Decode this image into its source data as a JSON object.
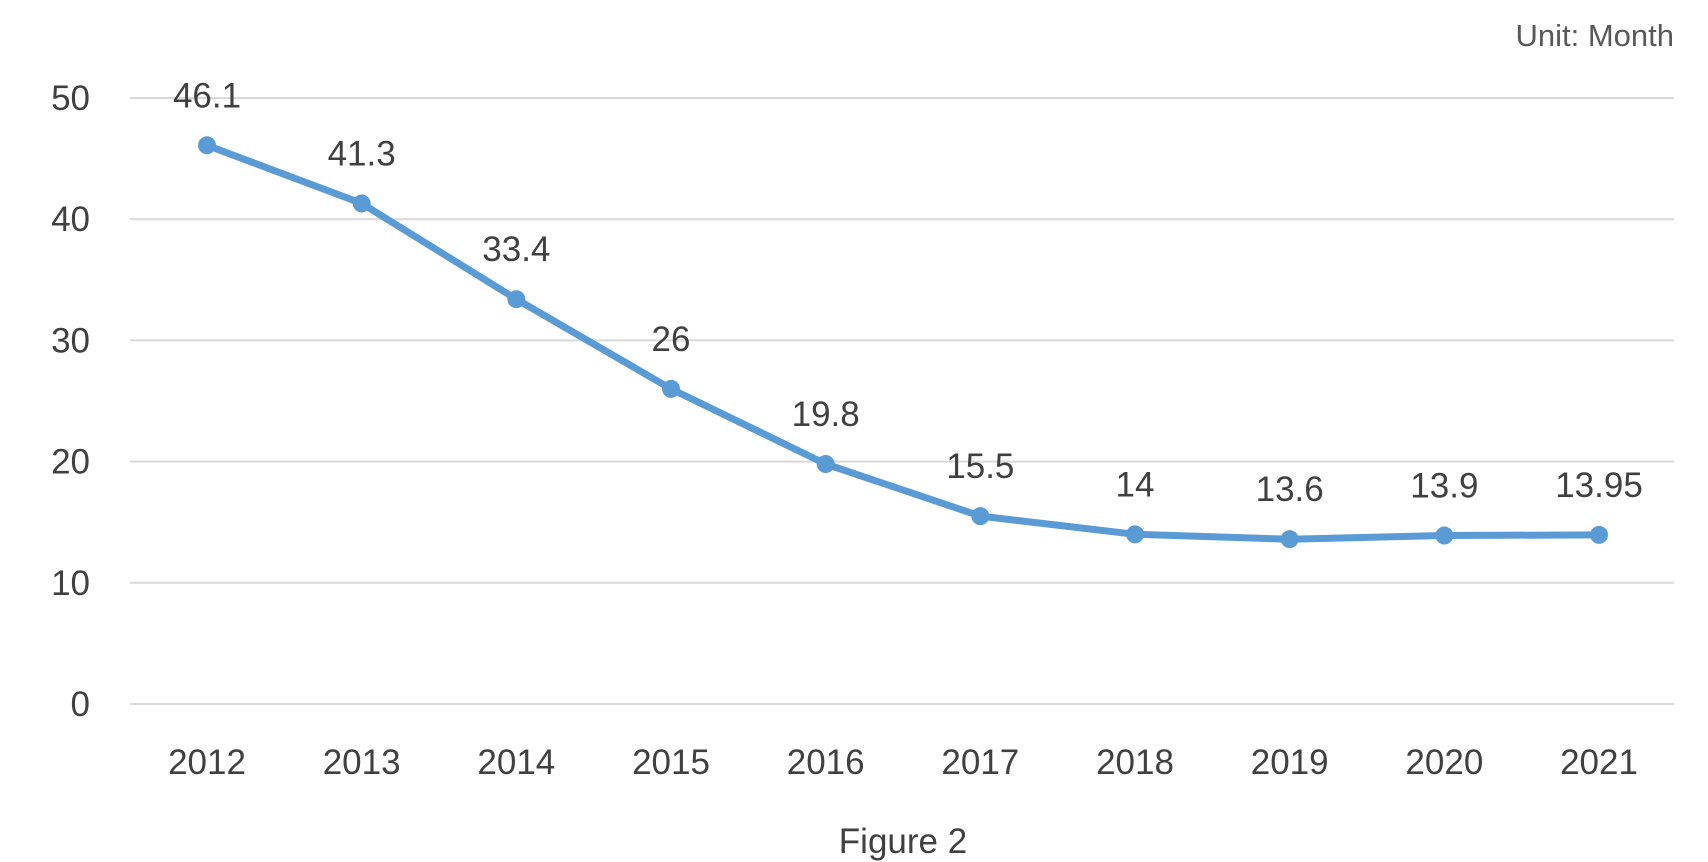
{
  "chart_data": {
    "type": "line",
    "unit_label": "Unit: Month",
    "caption": "Figure 2",
    "categories": [
      "2012",
      "2013",
      "2014",
      "2015",
      "2016",
      "2017",
      "2018",
      "2019",
      "2020",
      "2021"
    ],
    "series": [
      {
        "values": [
          46.1,
          41.3,
          33.4,
          26,
          19.8,
          15.5,
          14,
          13.6,
          13.9,
          13.95
        ],
        "data_labels": [
          "46.1",
          "41.3",
          "33.4",
          "26",
          "19.8",
          "15.5",
          "14",
          "13.6",
          "13.9",
          "13.95"
        ],
        "color": "#5b9bd5"
      }
    ],
    "ylim": [
      0,
      50
    ],
    "yticks": [
      0,
      10,
      20,
      30,
      40,
      50
    ],
    "grid": true,
    "legend": "none"
  }
}
